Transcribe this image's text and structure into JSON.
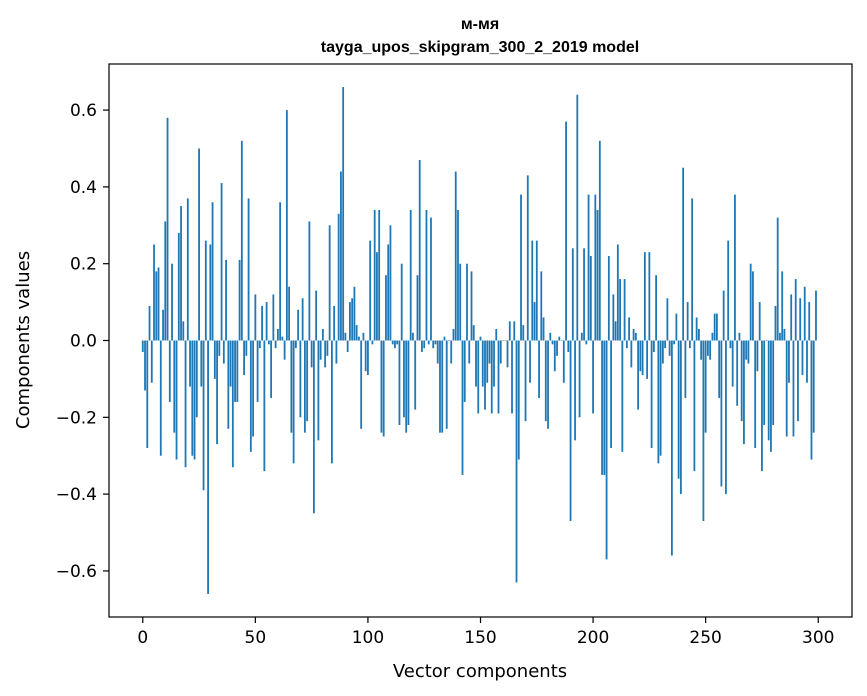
{
  "chart_data": {
    "type": "bar",
    "title": "м-мя",
    "subtitle": "tayga_upos_skipgram_300_2_2019 model",
    "xlabel": "Vector components",
    "ylabel": "Components values",
    "xlim": [
      -15,
      315
    ],
    "ylim": [
      -0.72,
      0.72
    ],
    "xticks": [
      0,
      50,
      100,
      150,
      200,
      250,
      300
    ],
    "yticks": [
      -0.6,
      -0.4,
      -0.2,
      0.0,
      0.2,
      0.4,
      0.6
    ],
    "ytick_labels": [
      "−0.6",
      "−0.4",
      "−0.2",
      "0.0",
      "0.2",
      "0.4",
      "0.6"
    ],
    "color": "#1f77b4",
    "series": [
      {
        "name": "м-мя",
        "values": [
          -0.03,
          -0.13,
          -0.28,
          0.09,
          -0.11,
          0.25,
          0.18,
          0.19,
          -0.3,
          0.08,
          0.31,
          0.58,
          -0.16,
          0.2,
          -0.24,
          -0.31,
          0.28,
          0.35,
          0.05,
          -0.33,
          0.37,
          -0.12,
          -0.3,
          -0.31,
          -0.2,
          0.5,
          -0.12,
          -0.39,
          0.26,
          -0.66,
          0.25,
          0.36,
          -0.1,
          -0.27,
          -0.04,
          0.41,
          -0.06,
          0.21,
          -0.23,
          -0.12,
          -0.33,
          -0.16,
          -0.16,
          0.21,
          0.52,
          -0.09,
          -0.04,
          0.37,
          -0.29,
          -0.25,
          0.12,
          -0.16,
          -0.02,
          0.09,
          -0.34,
          0.1,
          -0.01,
          -0.15,
          0.12,
          -0.02,
          0.03,
          0.36,
          0.01,
          -0.05,
          0.6,
          0.14,
          -0.24,
          -0.32,
          -0.02,
          0.08,
          -0.2,
          0.11,
          -0.24,
          -0.21,
          0.31,
          -0.07,
          -0.45,
          0.13,
          -0.26,
          -0.05,
          0.03,
          -0.07,
          -0.04,
          0.3,
          -0.32,
          0.09,
          -0.06,
          0.33,
          0.44,
          0.66,
          0.02,
          -0.03,
          0.1,
          0.11,
          0.14,
          0.04,
          0.01,
          -0.23,
          0.02,
          -0.08,
          -0.09,
          0.26,
          -0.01,
          0.34,
          0.23,
          0.34,
          -0.24,
          -0.25,
          0.17,
          0.25,
          0.3,
          -0.01,
          -0.02,
          -0.01,
          -0.22,
          0.2,
          -0.2,
          -0.24,
          -0.22,
          0.34,
          0.02,
          -0.18,
          0.17,
          0.47,
          -0.03,
          -0.02,
          0.34,
          -0.01,
          0.32,
          -0.02,
          -0.01,
          -0.06,
          -0.24,
          -0.24,
          0.01,
          -0.23,
          0.0,
          -0.06,
          0.03,
          0.44,
          0.34,
          0.2,
          -0.35,
          -0.16,
          0.2,
          -0.06,
          0.18,
          0.04,
          -0.12,
          -0.19,
          0.01,
          -0.12,
          -0.18,
          -0.11,
          -0.06,
          -0.19,
          -0.12,
          0.03,
          -0.19,
          -0.06,
          0.0,
          0.0,
          -0.07,
          0.05,
          -0.19,
          0.05,
          -0.63,
          -0.31,
          0.38,
          0.04,
          -0.21,
          0.43,
          -0.11,
          0.26,
          0.1,
          0.26,
          -0.15,
          0.18,
          0.06,
          -0.21,
          -0.23,
          0.02,
          -0.01,
          -0.08,
          -0.04,
          0.01,
          0.0,
          -0.11,
          0.57,
          -0.03,
          -0.47,
          0.24,
          -0.26,
          0.64,
          -0.2,
          0.02,
          0.24,
          -0.01,
          0.38,
          0.22,
          -0.19,
          0.38,
          0.34,
          0.52,
          -0.35,
          -0.35,
          -0.57,
          0.22,
          -0.28,
          0.12,
          0.05,
          0.25,
          0.16,
          -0.29,
          0.16,
          -0.02,
          0.06,
          -0.07,
          0.03,
          0.02,
          -0.18,
          -0.08,
          -0.09,
          0.23,
          -0.1,
          0.23,
          -0.28,
          -0.03,
          0.17,
          -0.32,
          -0.3,
          -0.06,
          -0.02,
          0.11,
          -0.04,
          -0.56,
          -0.01,
          0.07,
          -0.36,
          -0.4,
          0.45,
          -0.15,
          0.1,
          -0.02,
          0.37,
          -0.34,
          0.06,
          0.03,
          -0.05,
          -0.47,
          -0.24,
          -0.04,
          -0.05,
          0.02,
          0.07,
          0.07,
          -0.15,
          -0.38,
          0.13,
          -0.4,
          0.26,
          -0.02,
          -0.12,
          0.38,
          -0.17,
          0.02,
          -0.21,
          -0.27,
          -0.05,
          -0.06,
          0.2,
          0.18,
          -0.28,
          -0.08,
          0.1,
          -0.34,
          -0.22,
          0.0,
          -0.26,
          -0.29,
          -0.22,
          0.09,
          0.32,
          0.02,
          0.18,
          0.03,
          -0.25,
          -0.11,
          0.12,
          -0.25,
          0.16,
          -0.21,
          0.11,
          -0.09,
          0.14,
          -0.11,
          0.1,
          -0.31,
          -0.24,
          0.13
        ]
      }
    ]
  }
}
